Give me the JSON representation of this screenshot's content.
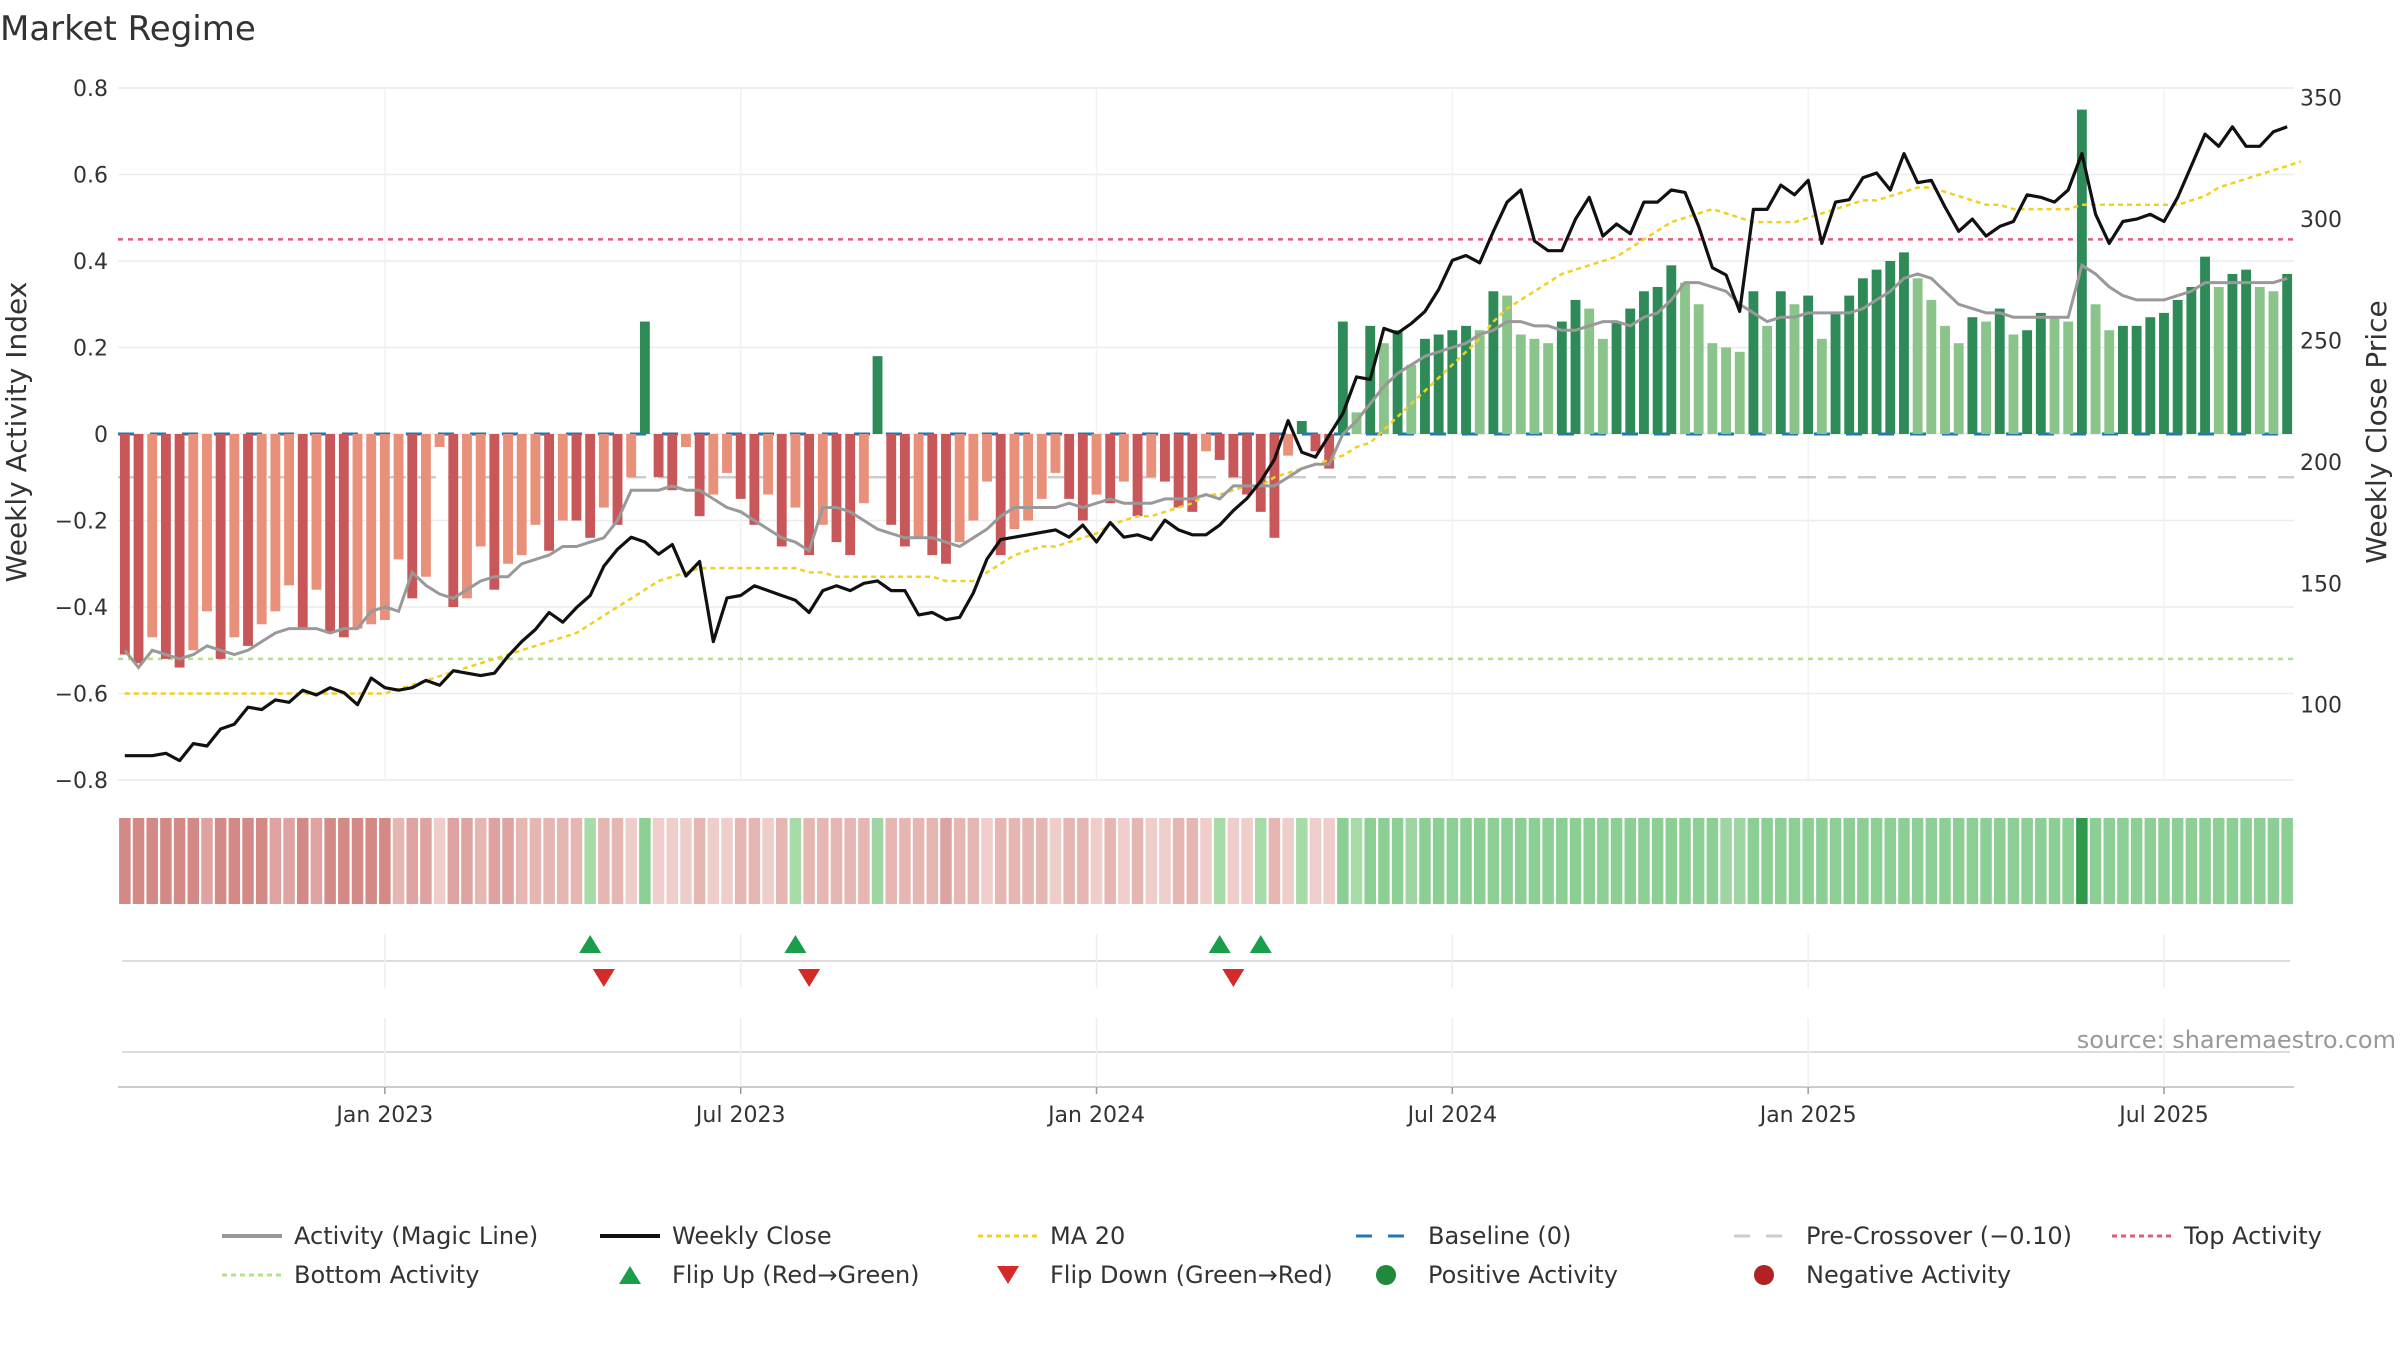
{
  "chart_data": {
    "type": "bar",
    "title": "Market Regime",
    "ylabel_left": "Weekly Activity Index",
    "ylabel_right": "Weekly Close Price",
    "source": "source: sharemaestro.com",
    "left_axis": {
      "ylim": [
        -0.8,
        0.8
      ],
      "ticks": [
        "0.8",
        "0.6",
        "0.4",
        "0.2",
        "0",
        "−0.2",
        "−0.4",
        "−0.6",
        "−0.8"
      ],
      "tick_values": [
        0.8,
        0.6,
        0.4,
        0.2,
        0,
        -0.2,
        -0.4,
        -0.6,
        -0.8
      ]
    },
    "right_axis": {
      "ylim": [
        69,
        354
      ],
      "ticks": [
        "350",
        "300",
        "250",
        "200",
        "150",
        "100"
      ],
      "tick_values": [
        350,
        300,
        250,
        200,
        150,
        100
      ]
    },
    "x_ticks": [
      "Jan 2023",
      "Jul 2023",
      "Jan 2024",
      "Jul 2024",
      "Jan 2025",
      "Jul 2025"
    ],
    "x_tick_weeks": [
      19,
      45,
      71,
      97,
      123,
      149
    ],
    "grid": true,
    "legend_position": "bottom",
    "reference_lines": {
      "top_activity": 0.45,
      "bottom_activity": -0.52,
      "baseline": 0,
      "pre_crossover": -0.1
    },
    "activity": [
      -0.51,
      -0.53,
      -0.47,
      -0.52,
      -0.54,
      -0.5,
      -0.41,
      -0.52,
      -0.47,
      -0.49,
      -0.44,
      -0.41,
      -0.35,
      -0.45,
      -0.36,
      -0.46,
      -0.47,
      -0.45,
      -0.44,
      -0.43,
      -0.29,
      -0.38,
      -0.33,
      -0.03,
      -0.4,
      -0.38,
      -0.26,
      -0.36,
      -0.3,
      -0.28,
      -0.21,
      -0.27,
      -0.2,
      -0.2,
      -0.24,
      -0.17,
      -0.21,
      -0.1,
      0.26,
      -0.1,
      -0.13,
      -0.03,
      -0.19,
      -0.14,
      -0.09,
      -0.15,
      -0.21,
      -0.14,
      -0.26,
      -0.17,
      -0.28,
      -0.21,
      -0.25,
      -0.28,
      -0.16,
      0.18,
      -0.21,
      -0.26,
      -0.24,
      -0.28,
      -0.3,
      -0.25,
      -0.2,
      -0.11,
      -0.28,
      -0.22,
      -0.2,
      -0.15,
      -0.09,
      -0.15,
      -0.2,
      -0.14,
      -0.16,
      -0.11,
      -0.19,
      -0.1,
      -0.11,
      -0.17,
      -0.18,
      -0.04,
      -0.06,
      -0.1,
      -0.14,
      -0.18,
      -0.24,
      -0.05,
      0.03,
      -0.04,
      -0.08,
      0.26,
      0.05,
      0.25,
      0.21,
      0.24,
      0.16,
      0.22,
      0.23,
      0.24,
      0.25,
      0.24,
      0.33,
      0.32,
      0.23,
      0.22,
      0.21,
      0.26,
      0.31,
      0.29,
      0.22,
      0.26,
      0.29,
      0.33,
      0.34,
      0.39,
      0.35,
      0.3,
      0.21,
      0.2,
      0.19,
      0.33,
      0.25,
      0.33,
      0.3,
      0.32,
      0.22,
      0.28,
      0.32,
      0.36,
      0.38,
      0.4,
      0.42,
      0.36,
      0.31,
      0.25,
      0.21,
      0.27,
      0.26,
      0.29,
      0.23,
      0.24,
      0.28,
      0.27,
      0.26,
      0.75,
      0.3,
      0.24,
      0.25,
      0.25,
      0.27,
      0.28,
      0.31,
      0.34,
      0.41,
      0.34,
      0.37,
      0.38,
      0.34,
      0.33,
      0.37
    ],
    "magic_line": [
      -0.5,
      -0.54,
      -0.5,
      -0.51,
      -0.52,
      -0.51,
      -0.49,
      -0.5,
      -0.51,
      -0.5,
      -0.48,
      -0.46,
      -0.45,
      -0.45,
      -0.45,
      -0.46,
      -0.45,
      -0.45,
      -0.41,
      -0.4,
      -0.41,
      -0.32,
      -0.35,
      -0.37,
      -0.38,
      -0.36,
      -0.34,
      -0.33,
      -0.33,
      -0.3,
      -0.29,
      -0.28,
      -0.26,
      -0.26,
      -0.25,
      -0.24,
      -0.2,
      -0.13,
      -0.13,
      -0.13,
      -0.12,
      -0.13,
      -0.13,
      -0.15,
      -0.17,
      -0.18,
      -0.2,
      -0.22,
      -0.24,
      -0.25,
      -0.27,
      -0.17,
      -0.17,
      -0.18,
      -0.2,
      -0.22,
      -0.23,
      -0.24,
      -0.24,
      -0.24,
      -0.25,
      -0.26,
      -0.24,
      -0.22,
      -0.19,
      -0.17,
      -0.17,
      -0.17,
      -0.17,
      -0.16,
      -0.17,
      -0.16,
      -0.15,
      -0.16,
      -0.16,
      -0.16,
      -0.15,
      -0.15,
      -0.15,
      -0.14,
      -0.15,
      -0.12,
      -0.12,
      -0.12,
      -0.12,
      -0.1,
      -0.08,
      -0.07,
      -0.07,
      0.0,
      0.03,
      0.07,
      0.11,
      0.14,
      0.16,
      0.18,
      0.19,
      0.2,
      0.21,
      0.23,
      0.24,
      0.26,
      0.26,
      0.25,
      0.25,
      0.24,
      0.24,
      0.25,
      0.26,
      0.26,
      0.25,
      0.27,
      0.28,
      0.31,
      0.35,
      0.35,
      0.34,
      0.33,
      0.3,
      0.28,
      0.26,
      0.27,
      0.27,
      0.28,
      0.28,
      0.28,
      0.28,
      0.29,
      0.31,
      0.33,
      0.36,
      0.37,
      0.36,
      0.33,
      0.3,
      0.29,
      0.28,
      0.28,
      0.27,
      0.27,
      0.27,
      0.27,
      0.27,
      0.39,
      0.37,
      0.34,
      0.32,
      0.31,
      0.31,
      0.31,
      0.32,
      0.33,
      0.35,
      0.35,
      0.35,
      0.35,
      0.35,
      0.35,
      0.36
    ],
    "weekly_close": [
      79,
      79,
      79,
      80,
      77,
      84,
      83,
      90,
      92,
      99,
      98,
      102,
      101,
      106,
      104,
      107,
      105,
      100,
      111,
      107,
      106,
      107,
      110,
      108,
      114,
      113,
      112,
      113,
      120,
      126,
      131,
      138,
      134,
      140,
      145,
      157,
      164,
      169,
      167,
      162,
      166,
      153,
      159,
      126,
      144,
      145,
      149,
      147,
      145,
      143,
      138,
      147,
      149,
      147,
      150,
      151,
      147,
      147,
      137,
      138,
      135,
      136,
      146,
      160,
      168,
      169,
      170,
      171,
      172,
      169,
      174,
      167,
      175,
      169,
      170,
      168,
      176,
      172,
      170,
      170,
      174,
      180,
      185,
      192,
      201,
      217,
      204,
      202,
      211,
      220,
      235,
      234,
      255,
      253,
      257,
      262,
      271,
      283,
      285,
      282,
      295,
      307,
      312,
      291,
      287,
      287,
      300,
      309,
      293,
      298,
      294,
      307,
      307,
      312,
      311,
      297,
      280,
      277,
      262,
      304,
      304,
      314,
      310,
      316,
      290,
      307,
      308,
      317,
      319,
      312,
      327,
      315,
      316,
      305,
      295,
      300,
      293,
      297,
      299,
      310,
      309,
      307,
      312,
      327,
      302,
      290,
      299,
      300,
      302,
      299,
      309,
      322,
      335,
      330,
      338,
      330,
      330,
      336,
      338
    ],
    "ma20": [
      -0.6,
      -0.6,
      -0.6,
      -0.6,
      -0.6,
      -0.6,
      -0.6,
      -0.6,
      -0.6,
      -0.6,
      -0.6,
      -0.6,
      -0.6,
      -0.6,
      -0.6,
      -0.6,
      -0.6,
      -0.6,
      -0.6,
      -0.6,
      -0.59,
      -0.58,
      -0.57,
      -0.56,
      -0.55,
      -0.54,
      -0.53,
      -0.52,
      -0.51,
      -0.5,
      -0.49,
      -0.48,
      -0.47,
      -0.46,
      -0.44,
      -0.42,
      -0.4,
      -0.38,
      -0.36,
      -0.34,
      -0.33,
      -0.32,
      -0.31,
      -0.31,
      -0.31,
      -0.31,
      -0.31,
      -0.31,
      -0.31,
      -0.31,
      -0.32,
      -0.32,
      -0.33,
      -0.33,
      -0.33,
      -0.33,
      -0.33,
      -0.33,
      -0.33,
      -0.33,
      -0.34,
      -0.34,
      -0.34,
      -0.32,
      -0.3,
      -0.28,
      -0.27,
      -0.26,
      -0.26,
      -0.25,
      -0.24,
      -0.23,
      -0.21,
      -0.2,
      -0.19,
      -0.19,
      -0.18,
      -0.17,
      -0.16,
      -0.14,
      -0.14,
      -0.13,
      -0.12,
      -0.12,
      -0.1,
      -0.09,
      -0.08,
      -0.07,
      -0.06,
      -0.05,
      -0.03,
      -0.02,
      0.01,
      0.04,
      0.07,
      0.1,
      0.13,
      0.16,
      0.19,
      0.22,
      0.26,
      0.29,
      0.31,
      0.33,
      0.35,
      0.37,
      0.38,
      0.39,
      0.4,
      0.41,
      0.43,
      0.45,
      0.47,
      0.49,
      0.5,
      0.51,
      0.52,
      0.51,
      0.5,
      0.49,
      0.49,
      0.49,
      0.49,
      0.5,
      0.51,
      0.52,
      0.53,
      0.54,
      0.54,
      0.55,
      0.56,
      0.57,
      0.57,
      0.56,
      0.55,
      0.54,
      0.53,
      0.53,
      0.52,
      0.52,
      0.52,
      0.52,
      0.52,
      0.53,
      0.53,
      0.53,
      0.53,
      0.53,
      0.53,
      0.53,
      0.53,
      0.54,
      0.55,
      0.57,
      0.58,
      0.59,
      0.6,
      0.61,
      0.62,
      0.63
    ],
    "flip_up_weeks": [
      34,
      49,
      80,
      83
    ],
    "flip_down_weeks": [
      35,
      50,
      81
    ],
    "regime_strip": "strength colour per week; dark green marks the strongest week",
    "legend": [
      "Activity (Magic Line)",
      "Weekly Close",
      "MA 20",
      "Baseline (0)",
      "Pre-Crossover (−0.10)",
      "Top Activity",
      "Bottom Activity",
      "Flip Up (Red→Green)",
      "Flip Down (Green→Red)",
      "Positive Activity",
      "Negative Activity"
    ]
  },
  "colors": {
    "pos_strong": "#2e8b57",
    "pos_light": "#8bc48a",
    "neg_strong": "#c8575a",
    "neg_light": "#e8907a",
    "close": "#111111",
    "magic": "#999999",
    "ma20": "#f0d020",
    "baseline": "#1f77b4",
    "pre": "#cccccc",
    "top": "#e05c7a",
    "bottom": "#b3e08a",
    "flip_up": "#1a9e4a",
    "flip_down": "#d42a2a"
  }
}
